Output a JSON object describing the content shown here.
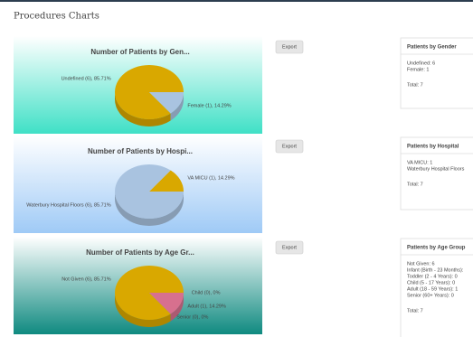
{
  "header": {
    "title": "Procedures Charts"
  },
  "panels": [
    {
      "chart": {
        "type": "pie",
        "title": "Number of Patients by Gen...",
        "values": [
          85.71,
          14.29
        ],
        "value_labels": [
          "Undefined (6), 85.71%",
          "Female (1), 14.29%"
        ],
        "colors": [
          "#d9a800",
          "#a9c3e0"
        ]
      },
      "export": "Export",
      "card": {
        "title": "Patients by Gender",
        "lines": [
          "Undefined: 6",
          "Female: 1"
        ],
        "total": "Total: 7"
      }
    },
    {
      "chart": {
        "type": "pie",
        "title": "Number of Patients by Hospi...",
        "values": [
          14.29,
          85.71
        ],
        "value_labels": [
          "VA MICU (1), 14.29%",
          "Waterbury Hospital Floors (6), 85.71%"
        ],
        "colors": [
          "#d9a800",
          "#a9c3e0"
        ]
      },
      "export": "Export",
      "card": {
        "title": "Patients by Hospital",
        "lines": [
          "VA MICU: 1",
          "Waterbury Hospital Floors"
        ],
        "total": "Total: 7"
      }
    },
    {
      "chart": {
        "type": "pie",
        "title": "Number of Patients by Age Gr...",
        "values": [
          85.71,
          0,
          14.29,
          0
        ],
        "value_labels": [
          "Not Given (6), 85.71%",
          "Senior (0), 0%",
          "Adult (1), 14.29%",
          "Child (0), 0%"
        ],
        "colors": [
          "#d9a800",
          "#a9c3e0",
          "#d7708e",
          "#8fc98f"
        ]
      },
      "export": "Export",
      "card": {
        "title": "Patients by Age Group",
        "lines": [
          "Not Given: 6",
          "Infant (Birth - 23 Months):",
          "Toddler (2 - 4 Years): 0",
          "Child (5 - 17 Years): 0",
          "Adult (18 - 59 Years): 1",
          "Senior (60+ Years): 0"
        ],
        "total": "Total: 7"
      }
    }
  ]
}
